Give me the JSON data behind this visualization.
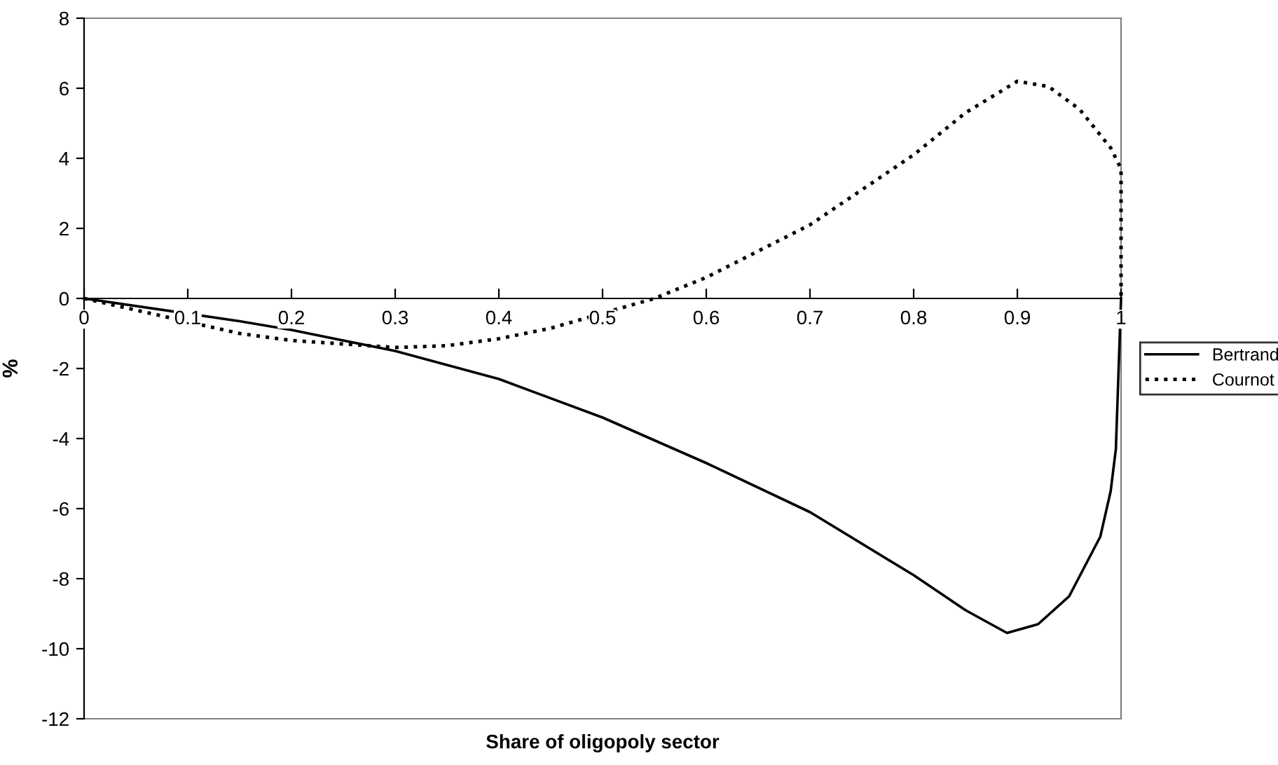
{
  "chart_data": {
    "type": "line",
    "xlabel": "Share of oligopoly sector",
    "ylabel": "%",
    "xlim": [
      0,
      1
    ],
    "xticks": [
      0,
      0.1,
      0.2,
      0.3,
      0.4,
      0.5,
      0.6,
      0.7,
      0.8,
      0.9,
      1
    ],
    "ylim": [
      -12,
      8
    ],
    "yticks": [
      -12,
      -10,
      -8,
      -6,
      -4,
      -2,
      0,
      2,
      4,
      6,
      8
    ],
    "grid": false,
    "legend": "right",
    "marker": "none",
    "series": [
      {
        "name": "Bertrand",
        "color": "#000000",
        "line_style": "solid",
        "x": [
          0,
          0.15,
          0.2,
          0.3,
          0.4,
          0.5,
          0.6,
          0.7,
          0.8,
          0.85,
          0.89,
          0.92,
          0.95,
          0.98,
          0.99,
          0.995,
          1
        ],
        "values": [
          0,
          -0.65,
          -0.9,
          -1.5,
          -2.3,
          -3.4,
          -4.7,
          -6.1,
          -7.9,
          -8.9,
          -9.55,
          -9.3,
          -8.5,
          -6.8,
          -5.5,
          -4.3,
          0
        ]
      },
      {
        "name": "Cournot",
        "color": "#000000",
        "line_style": "dotted",
        "x": [
          0,
          0.15,
          0.2,
          0.3,
          0.35,
          0.4,
          0.45,
          0.55,
          0.6,
          0.7,
          0.8,
          0.85,
          0.9,
          0.93,
          0.96,
          0.99,
          1,
          1
        ],
        "values": [
          0,
          -1.0,
          -1.2,
          -1.4,
          -1.35,
          -1.15,
          -0.85,
          0,
          0.6,
          2.1,
          4.1,
          5.3,
          6.2,
          6.05,
          5.4,
          4.3,
          3.7,
          0
        ]
      }
    ]
  }
}
